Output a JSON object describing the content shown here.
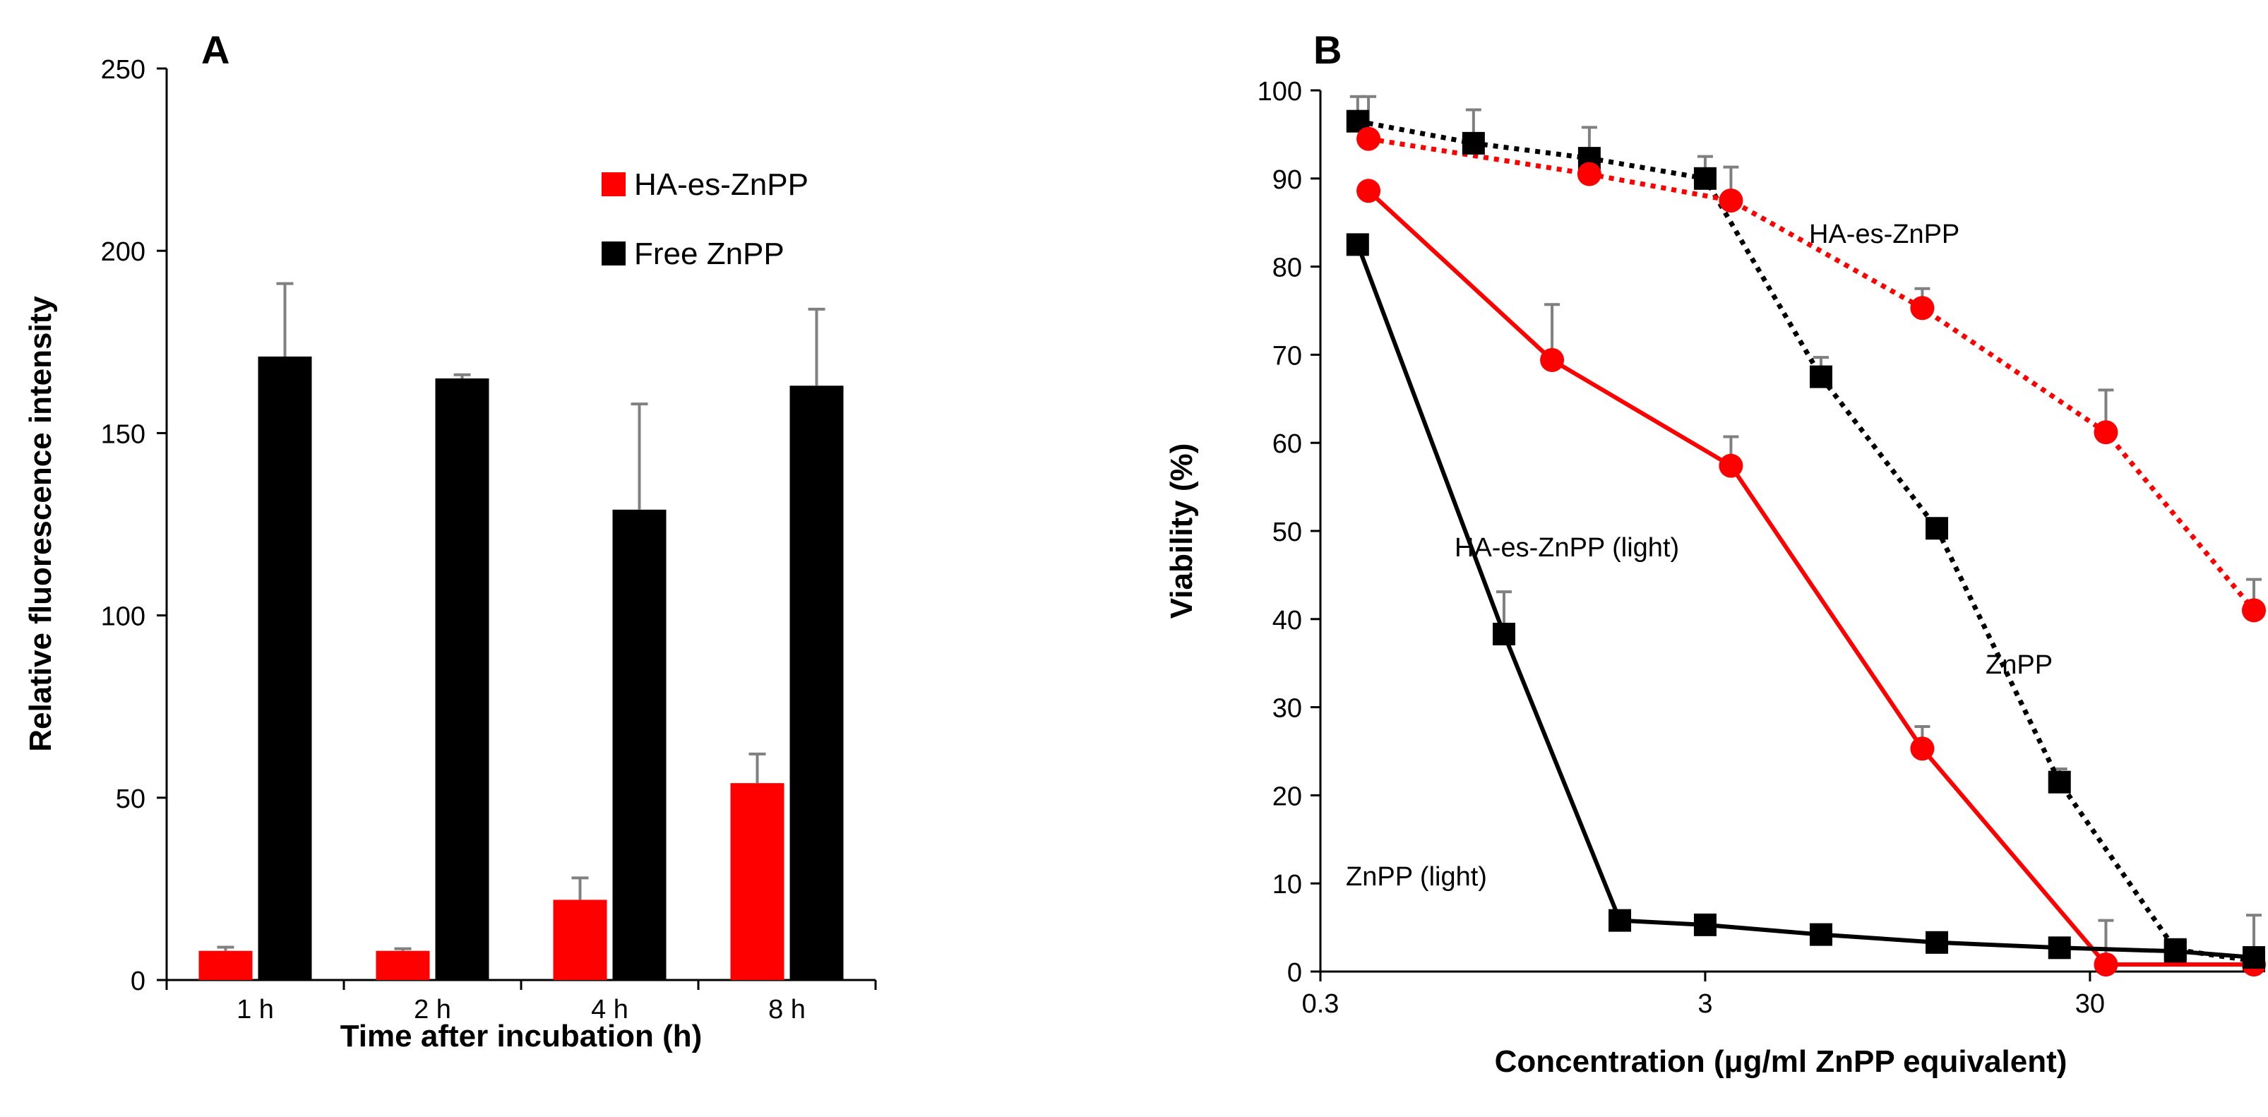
{
  "chart_data": [
    {
      "panel": "A",
      "type": "bar",
      "xlabel": "Time after incubation (h)",
      "ylabel": "Relative fluorescence intensity",
      "ylim": [
        0,
        250
      ],
      "yticks": [
        0,
        50,
        100,
        150,
        200,
        250
      ],
      "categories": [
        "1 h",
        "2 h",
        "4 h",
        "8 h"
      ],
      "legend": "top-center",
      "series": [
        {
          "name": "HA-es-ZnPP",
          "color": "#ff0000",
          "values": [
            8,
            8,
            22,
            54
          ],
          "errors": [
            1,
            0.6,
            6,
            8
          ]
        },
        {
          "name": "Free ZnPP",
          "color": "#000000",
          "values": [
            171,
            165,
            129,
            163
          ],
          "errors": [
            20,
            1,
            29,
            21
          ]
        }
      ]
    },
    {
      "panel": "B",
      "type": "line",
      "xscale": "log",
      "xlabel": "Concentration (μg/ml ZnPP equivalent)",
      "ylabel": "Viability (%)",
      "xlim": [
        0.3,
        80
      ],
      "xticks": [
        0.3,
        3,
        30
      ],
      "xtick_labels": [
        "0.3",
        "3",
        "30"
      ],
      "ylim": [
        0,
        100
      ],
      "yticks": [
        0,
        10,
        20,
        30,
        40,
        50,
        60,
        70,
        80,
        90,
        100
      ],
      "series": [
        {
          "name": "ZnPP",
          "color": "#000000",
          "marker": "square",
          "style": "dotted",
          "x": [
            0.375,
            0.75,
            1.5,
            3.0,
            6.0,
            12.0,
            25.0,
            50.0,
            80.0
          ],
          "y": [
            96.5,
            94,
            92.3,
            90,
            67.5,
            50.3,
            21.5,
            2.5,
            1.2
          ],
          "errors": [
            2.8,
            3.8,
            3.5,
            2.5,
            2.2,
            0,
            1.5,
            0,
            0
          ]
        },
        {
          "name": "HA-es-ZnPP",
          "color": "#ff0000",
          "marker": "circle",
          "style": "dotted",
          "x": [
            0.4,
            1.5,
            3.5,
            11.0,
            33.0,
            80.0
          ],
          "y": [
            94.5,
            90.5,
            87.5,
            75.3,
            61.2,
            41
          ],
          "errors": [
            4.8,
            2.5,
            3.8,
            2.2,
            4.8,
            3.5
          ]
        },
        {
          "name": "HA-es-ZnPP (light)",
          "color": "#ff0000",
          "marker": "circle",
          "style": "solid",
          "x": [
            0.4,
            1.2,
            3.5,
            11.0,
            33.0,
            80.0
          ],
          "y": [
            88.6,
            69.4,
            57.4,
            25.3,
            0.8,
            0.8
          ],
          "errors": [
            0,
            6.3,
            3.3,
            2.5,
            5,
            0
          ]
        },
        {
          "name": "ZnPP (light)",
          "color": "#000000",
          "marker": "square",
          "style": "solid",
          "x": [
            0.375,
            0.9,
            1.8,
            3.0,
            6.0,
            12.0,
            25.0,
            50.0,
            80.0
          ],
          "y": [
            82.5,
            38.3,
            5.8,
            5.3,
            4.2,
            3.3,
            2.7,
            2.3,
            1.6
          ],
          "errors": [
            1,
            4.8,
            0,
            0,
            0,
            0,
            0,
            0,
            4.8
          ]
        }
      ],
      "annotations": [
        {
          "series": "HA-es-ZnPP",
          "text": "HA-es-ZnPP",
          "color": "#ff0000"
        },
        {
          "series": "HA-es-ZnPP (light)",
          "text": "HA-es-ZnPP (light)",
          "color": "#ff0000"
        },
        {
          "series": "ZnPP",
          "text": "ZnPP",
          "color": "#000000"
        },
        {
          "series": "ZnPP (light)",
          "text": "ZnPP (light)",
          "color": "#000000"
        }
      ]
    }
  ]
}
